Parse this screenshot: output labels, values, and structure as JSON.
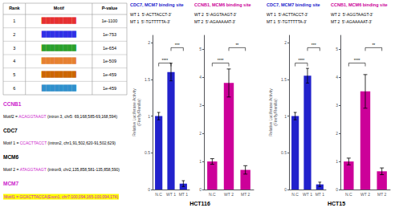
{
  "chart_data": [
    {
      "type": "table",
      "columns": [
        "Rank",
        "Motif",
        "P-value"
      ],
      "rows": [
        [
          "1",
          "████████",
          "1e-1100"
        ],
        [
          "2",
          "████████",
          "1e-753"
        ],
        [
          "3",
          "████████",
          "1e-654"
        ],
        [
          "4",
          "████████",
          "1e-509"
        ],
        [
          "5",
          "████████",
          "1e-459"
        ],
        [
          "6",
          "████████",
          "1e-459"
        ]
      ],
      "colors": [
        "#e63030",
        "#3030e6",
        "#2ba02b",
        "#e68030",
        "#cc6600",
        "#3090cc"
      ]
    },
    {
      "type": "text",
      "annotations": [
        [
          {
            "text": "CCNB1",
            "color": "#cc22cc"
          }
        ],
        [
          {
            "text": "Motif2 = "
          },
          {
            "text": "ACAGGTAAGT",
            "color": "#cc22cc"
          },
          {
            "text": " (intron 3, chr5: 69,168,585-69,168,594)"
          }
        ],
        [
          {
            "text": "CDC7"
          }
        ],
        [
          {
            "text": "Motif 1 = "
          },
          {
            "text": "CCACTTACCT",
            "color": "#cc22cc"
          },
          {
            "text": " (intron2, chr1,91,502,620-91,502,629)"
          }
        ],
        [
          {
            "text": "MCM6"
          }
        ],
        [
          {
            "text": "Motif 2 = "
          },
          {
            "text": "ATAGGTAAGT",
            "color": "#cc22cc"
          },
          {
            "text": " (intron9, chr2,135,858,581-135,858,590)"
          }
        ],
        [
          {
            "text": "MCM7",
            "color": "#cc22cc"
          }
        ],
        [
          {
            "text": "Motif1 = GCACTTACCA(Exon1, chr7:100,094,165-100,094,174)",
            "color": "#cc22cc",
            "background": "#ffff00"
          }
        ]
      ]
    },
    {
      "type": "bar",
      "title": "CDC7, MCM7 binding site",
      "subtitle": [
        "WT 1  5'-ACTTACCT-3'",
        "MT 1  5'-TGTTTTTA-3'"
      ],
      "xlabel": "HCT116",
      "ylabel": "Relative Luciferase Activity\n(Firefly/Renilla)",
      "categories": [
        "N.C",
        "WT 1",
        "MT 1"
      ],
      "values": [
        1.0,
        1.6,
        0.08
      ],
      "errors": [
        0.05,
        0.12,
        0.04
      ],
      "color": "#2222cc",
      "ylim": [
        0,
        2.1
      ],
      "yticks": [
        0,
        0.5,
        1,
        1.5,
        2
      ],
      "significance": [
        {
          "categories": [
            "N.C",
            "WT 1"
          ],
          "label": "****"
        },
        {
          "categories": [
            "WT 1",
            "MT 1"
          ],
          "label": "***"
        }
      ]
    },
    {
      "type": "bar",
      "title": "CCNB1, MCM6 binding site",
      "subtitle": [
        "WT 2  5'-AGGTAAGT-3'",
        "MT 2  5'-AGAAAAAT-3'"
      ],
      "xlabel": "HCT116",
      "categories": [
        "N.C",
        "WT 2",
        "MT 2"
      ],
      "values": [
        1.0,
        3.8,
        0.7
      ],
      "errors": [
        0.1,
        0.5,
        0.15
      ],
      "color": "#cc0099",
      "ylim": [
        0,
        5.5
      ],
      "yticks": [
        0,
        1,
        2,
        3,
        4,
        5
      ],
      "significance": [
        {
          "categories": [
            "N.C",
            "WT 2"
          ],
          "label": "****"
        },
        {
          "categories": [
            "WT 2",
            "MT 2"
          ],
          "label": "**"
        }
      ]
    },
    {
      "type": "bar",
      "title": "CDC7, MCM7 binding site",
      "subtitle": [
        "WT 1  5'-ACTTACCT-3'",
        "MT 1  5'-TGTTTTTA-3'"
      ],
      "xlabel": "HCT15",
      "ylabel": "Relative Luciferase Activity\n(Firefly/Renilla)",
      "categories": [
        "N.C",
        "WT 1",
        "MT 1"
      ],
      "values": [
        1.0,
        1.55,
        0.07
      ],
      "errors": [
        0.05,
        0.1,
        0.03
      ],
      "color": "#2222cc",
      "ylim": [
        0,
        2.1
      ],
      "yticks": [
        0,
        0.5,
        1,
        1.5,
        2
      ],
      "significance": [
        {
          "categories": [
            "N.C",
            "WT 1"
          ],
          "label": "****"
        },
        {
          "categories": [
            "WT 1",
            "MT 1"
          ],
          "label": "***"
        }
      ]
    },
    {
      "type": "bar",
      "title": "CCNB1, MCM6 binding site",
      "subtitle": [
        "WT 2  5'-AGGTAAGT-3'",
        "MT 2  5'-AGAAAAAT-3'"
      ],
      "xlabel": "HCT15",
      "categories": [
        "N.C",
        "WT 2",
        "MT 2"
      ],
      "values": [
        1.0,
        3.5,
        0.65
      ],
      "errors": [
        0.12,
        0.6,
        0.12
      ],
      "color": "#cc0099",
      "ylim": [
        0,
        5.5
      ],
      "yticks": [
        0,
        1,
        2,
        3,
        4,
        5
      ],
      "significance": [
        {
          "categories": [
            "N.C",
            "WT 2"
          ],
          "label": "****"
        },
        {
          "categories": [
            "WT 2",
            "MT 2"
          ],
          "label": "**"
        }
      ]
    }
  ]
}
